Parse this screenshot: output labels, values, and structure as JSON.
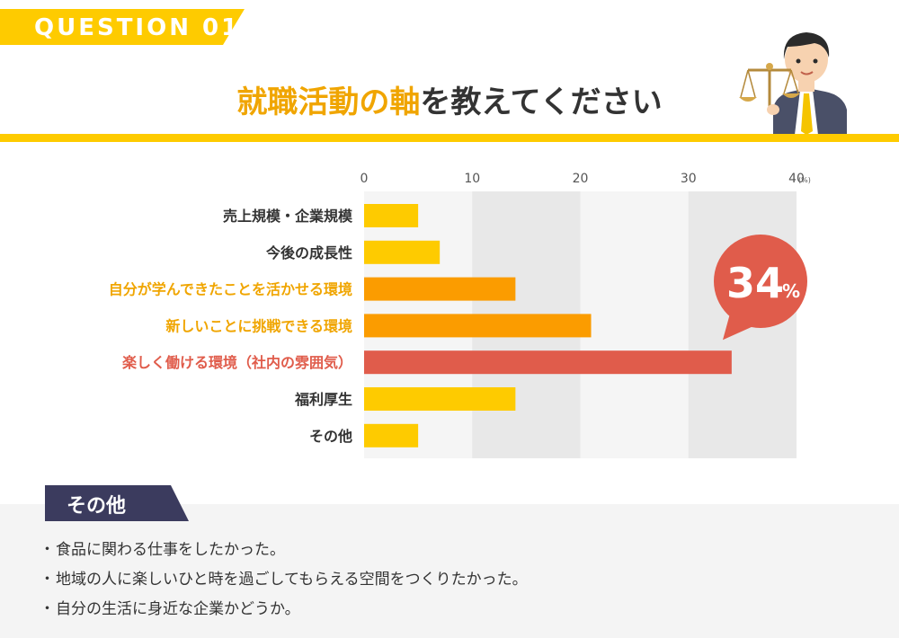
{
  "header": {
    "question_label": "QUESTION 01",
    "title_highlight": "就職活動の軸",
    "title_rest": "を教えてください"
  },
  "colors": {
    "yellow": "#fecb00",
    "orange": "#fb9c00",
    "red": "#e05c4b",
    "navy": "#3b3b5e",
    "band": "#e8e8e8",
    "text": "#333333"
  },
  "chart_data": {
    "type": "bar",
    "orientation": "horizontal",
    "categories": [
      "売上規模・企業規模",
      "今後の成長性",
      "自分が学んできたことを活かせる環境",
      "新しいことに挑戦できる環境",
      "楽しく働ける環境（社内の雰囲気）",
      "福利厚生",
      "その他"
    ],
    "values": [
      5,
      7,
      14,
      21,
      34,
      14,
      5
    ],
    "label_colors": [
      "#333333",
      "#333333",
      "#f0a500",
      "#f0a500",
      "#e05c4b",
      "#333333",
      "#333333"
    ],
    "bar_colors": [
      "#fecb00",
      "#fecb00",
      "#fb9c00",
      "#fb9c00",
      "#e05c4b",
      "#fecb00",
      "#fecb00"
    ],
    "x_ticks": [
      "0",
      "10",
      "20",
      "30",
      "40"
    ],
    "x_unit": "(%)",
    "xlim": [
      0,
      40
    ],
    "callout": {
      "value": "34",
      "unit": "%",
      "category_index": 4
    }
  },
  "note": {
    "tag": "その他",
    "items": [
      "食品に関わる仕事をしたかった。",
      "地域の人に楽しいひと時を過ごしてもらえる空間をつくりたかった。",
      "自分の生活に身近な企業かどうか。"
    ]
  }
}
